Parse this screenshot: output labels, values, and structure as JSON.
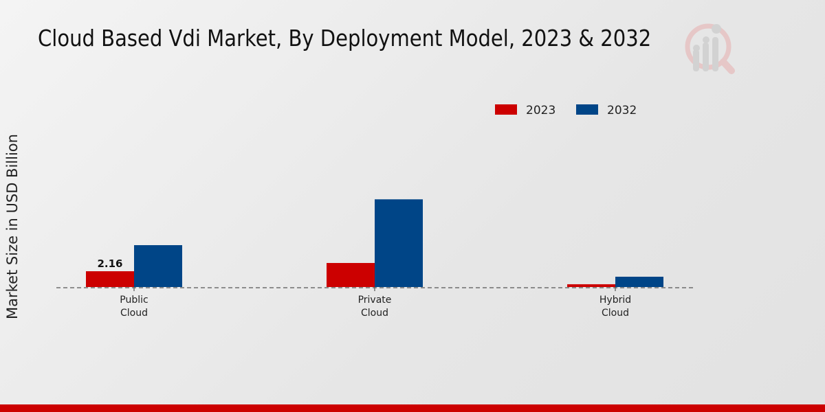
{
  "chart_data": {
    "type": "bar",
    "title": "Cloud Based Vdi Market, By Deployment Model, 2023 & 2032",
    "xlabel": "",
    "ylabel": "Market Size in USD Billion",
    "categories": [
      [
        "Public",
        "Cloud"
      ],
      [
        "Private",
        "Cloud"
      ],
      [
        "Hybrid",
        "Cloud"
      ]
    ],
    "series": [
      {
        "name": "2023",
        "color": "#cc0000",
        "values": [
          2.16,
          3.29,
          0.38
        ],
        "labels": [
          "2.16",
          null,
          null
        ]
      },
      {
        "name": "2032",
        "color": "#004587",
        "values": [
          5.73,
          12.0,
          1.41
        ],
        "labels": [
          null,
          null,
          null
        ]
      }
    ],
    "ylim": [
      0,
      14
    ],
    "grid": false,
    "legend": "top-right"
  }
}
